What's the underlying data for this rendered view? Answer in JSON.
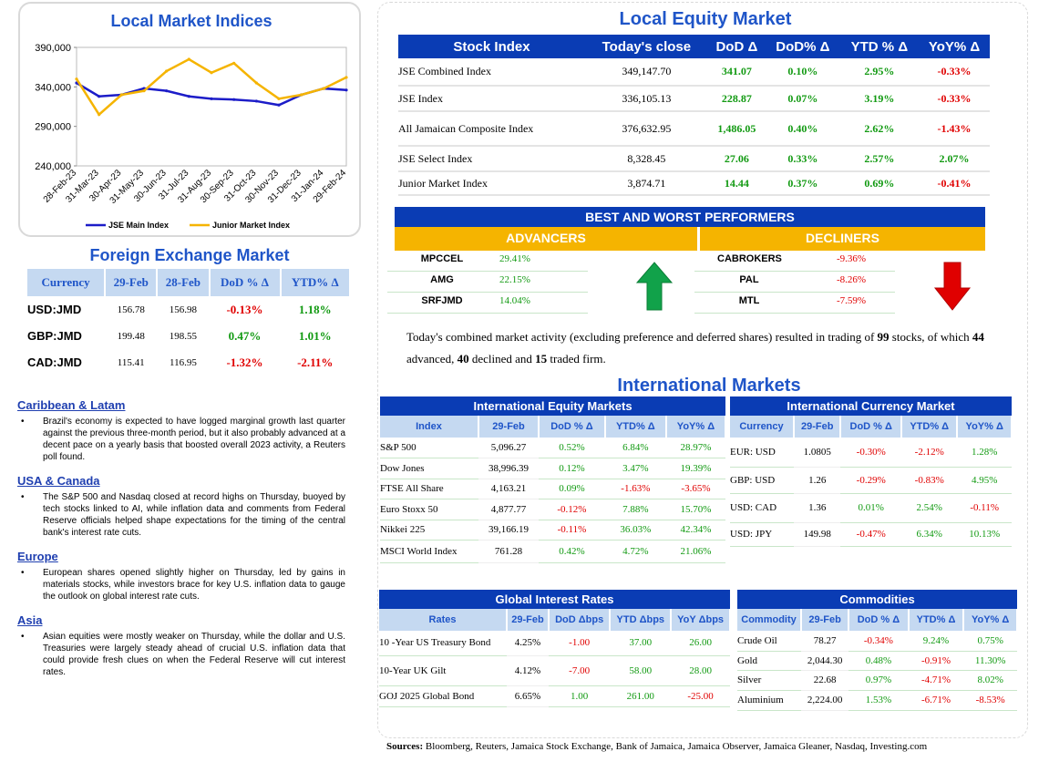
{
  "local_indices": {
    "title": "Local Market Indices",
    "legend": [
      "JSE Main Index",
      "Junior Market Index"
    ],
    "chart_data": {
      "type": "line",
      "title": "Local Market Indices",
      "yticks": [
        "390,000",
        "340,000",
        "290,000",
        "240,000"
      ],
      "ylim": [
        240000,
        390000
      ],
      "categories": [
        "28-Feb-23",
        "31-Mar-23",
        "30-Apr-23",
        "31-May-23",
        "30-Jun-23",
        "31-Jul-23",
        "31-Aug-23",
        "30-Sep-23",
        "31-Oct-23",
        "30-Nov-23",
        "31-Dec-23",
        "31-Jan-24",
        "29-Feb-24"
      ],
      "series": [
        {
          "name": "JSE Main Index",
          "color": "#1c1cc8",
          "values": [
            345000,
            328000,
            330000,
            338000,
            335000,
            328000,
            325000,
            324000,
            322000,
            317000,
            330000,
            338000,
            336000
          ]
        },
        {
          "name": "Junior Market Index",
          "color": "#f5b400",
          "values": [
            350000,
            305000,
            330000,
            335000,
            360000,
            375000,
            358000,
            370000,
            345000,
            325000,
            330000,
            338000,
            352000
          ]
        }
      ]
    }
  },
  "forex": {
    "title": "Foreign Exchange Market",
    "headers": [
      "Currency",
      "29-Feb",
      "28-Feb",
      "DoD % Δ",
      "YTD% Δ"
    ],
    "rows": [
      [
        "USD:JMD",
        "156.78",
        "156.98",
        "-0.13%",
        "1.18%"
      ],
      [
        "GBP:JMD",
        "199.48",
        "198.55",
        "0.47%",
        "1.01%"
      ],
      [
        "CAD:JMD",
        "115.41",
        "116.95",
        "-1.32%",
        "-2.11%"
      ]
    ]
  },
  "news": [
    {
      "h": "Caribbean & Latam",
      "t": "Brazil's economy is expected to have logged marginal growth last quarter against the previous three-month period, but it also probably advanced at a decent pace on a yearly basis that boosted overall 2023 activity, a Reuters poll found."
    },
    {
      "h": "USA & Canada",
      "t": "The S&P 500 and Nasdaq closed at record highs on Thursday, buoyed by tech stocks linked to AI, while inflation data and comments from Federal Reserve officials helped shape expectations for the timing of the central bank's interest rate cuts."
    },
    {
      "h": "Europe",
      "t": "European shares opened slightly higher on Thursday, led by gains in materials stocks, while investors brace for key U.S. inflation data to gauge the outlook on global interest rate cuts."
    },
    {
      "h": "Asia",
      "t": "Asian equities were mostly weaker on Thursday, while the dollar and U.S. Treasuries were largely steady ahead of crucial U.S. inflation data that could provide fresh clues on when the Federal Reserve will cut interest rates."
    }
  ],
  "local_equity": {
    "title": "Local Equity Market",
    "headers": [
      "Stock Index",
      "Today's close",
      "DoD  Δ",
      "DoD% Δ",
      "YTD % Δ",
      "YoY% Δ"
    ],
    "rows": [
      [
        "JSE Combined Index",
        "349,147.70",
        "341.07",
        "0.10%",
        "2.95%",
        "-0.33%"
      ],
      [
        "JSE Index",
        "336,105.13",
        "228.87",
        "0.07%",
        "3.19%",
        "-0.33%"
      ],
      [
        "All Jamaican Composite Index",
        "376,632.95",
        "1,486.05",
        "0.40%",
        "2.62%",
        "-1.43%"
      ],
      [
        "JSE Select Index",
        "8,328.45",
        "27.06",
        "0.33%",
        "2.57%",
        "2.07%"
      ],
      [
        "Junior Market Index",
        "3,874.71",
        "14.44",
        "0.37%",
        "0.69%",
        "-0.41%"
      ]
    ]
  },
  "performers": {
    "title": "BEST AND WORST PERFORMERS",
    "adv_label": "ADVANCERS",
    "dec_label": "DECLINERS",
    "advancers": [
      [
        "MPCCEL",
        "29.41%"
      ],
      [
        "AMG",
        "22.15%"
      ],
      [
        "SRFJMD",
        "14.04%"
      ]
    ],
    "decliners": [
      [
        "CABROKERS",
        "-9.36%"
      ],
      [
        "PAL",
        "-8.26%"
      ],
      [
        "MTL",
        "-7.59%"
      ]
    ]
  },
  "activity": {
    "t1": "Today's combined market activity (excluding preference and deferred shares) resulted in trading of ",
    "n1": "99",
    "t2": " stocks, of which ",
    "n2": "44",
    "t3": " advanced, ",
    "n3": "40",
    "t4": " declined and ",
    "n4": "15",
    "t5": " traded firm."
  },
  "intl_title": "International Markets",
  "intl_equity": {
    "title": "International Equity Markets",
    "headers": [
      "Index",
      "29-Feb",
      "DoD % Δ",
      "YTD% Δ",
      "YoY% Δ"
    ],
    "rows": [
      [
        "S&P 500",
        "5,096.27",
        "0.52%",
        "6.84%",
        "28.97%"
      ],
      [
        "Dow Jones",
        "38,996.39",
        "0.12%",
        "3.47%",
        "19.39%"
      ],
      [
        "FTSE All Share",
        "4,163.21",
        "0.09%",
        "-1.63%",
        "-3.65%"
      ],
      [
        "Euro Stoxx 50",
        "4,877.77",
        "-0.12%",
        "7.88%",
        "15.70%"
      ],
      [
        "Nikkei 225",
        "39,166.19",
        "-0.11%",
        "36.03%",
        "42.34%"
      ],
      [
        "MSCI World Index",
        "761.28",
        "0.42%",
        "4.72%",
        "21.06%"
      ]
    ]
  },
  "intl_currency": {
    "title": "International Currency Market",
    "headers": [
      "Currency",
      "29-Feb",
      "DoD % Δ",
      "YTD% Δ",
      "YoY% Δ"
    ],
    "rows": [
      [
        "EUR: USD",
        "1.0805",
        "-0.30%",
        "-2.12%",
        "1.28%"
      ],
      [
        "GBP: USD",
        "1.26",
        "-0.29%",
        "-0.83%",
        "4.95%"
      ],
      [
        "USD: CAD",
        "1.36",
        "0.01%",
        "2.54%",
        "-0.11%"
      ],
      [
        "USD: JPY",
        "149.98",
        "-0.47%",
        "6.34%",
        "10.13%"
      ]
    ]
  },
  "rates": {
    "title": "Global Interest Rates",
    "headers": [
      "Rates",
      "29-Feb",
      "DoD Δbps",
      "YTD Δbps",
      "YoY Δbps"
    ],
    "rows": [
      [
        "10 -Year US Treasury Bond",
        "4.25%",
        "-1.00",
        "37.00",
        "26.00"
      ],
      [
        "10-Year UK Gilt",
        "4.12%",
        "-7.00",
        "58.00",
        "28.00"
      ],
      [
        "GOJ 2025 Global Bond",
        "6.65%",
        "1.00",
        "261.00",
        "-25.00"
      ]
    ]
  },
  "commodities": {
    "title": "Commodities",
    "headers": [
      "Commodity",
      "29-Feb",
      "DoD % Δ",
      "YTD% Δ",
      "YoY% Δ"
    ],
    "rows": [
      [
        "Crude Oil",
        "78.27",
        "-0.34%",
        "9.24%",
        "0.75%"
      ],
      [
        "Gold",
        "2,044.30",
        "0.48%",
        "-0.91%",
        "11.30%"
      ],
      [
        "Silver",
        "22.68",
        "0.97%",
        "-4.71%",
        "8.02%"
      ],
      [
        "Aluminium",
        "2,224.00",
        "1.53%",
        "-6.71%",
        "-8.53%"
      ]
    ]
  },
  "sources": {
    "label": "Sources:",
    "text": " Bloomberg, Reuters, Jamaica Stock Exchange, Bank of Jamaica, Jamaica Observer, Jamaica Gleaner, Nasdaq, Investing.com"
  }
}
